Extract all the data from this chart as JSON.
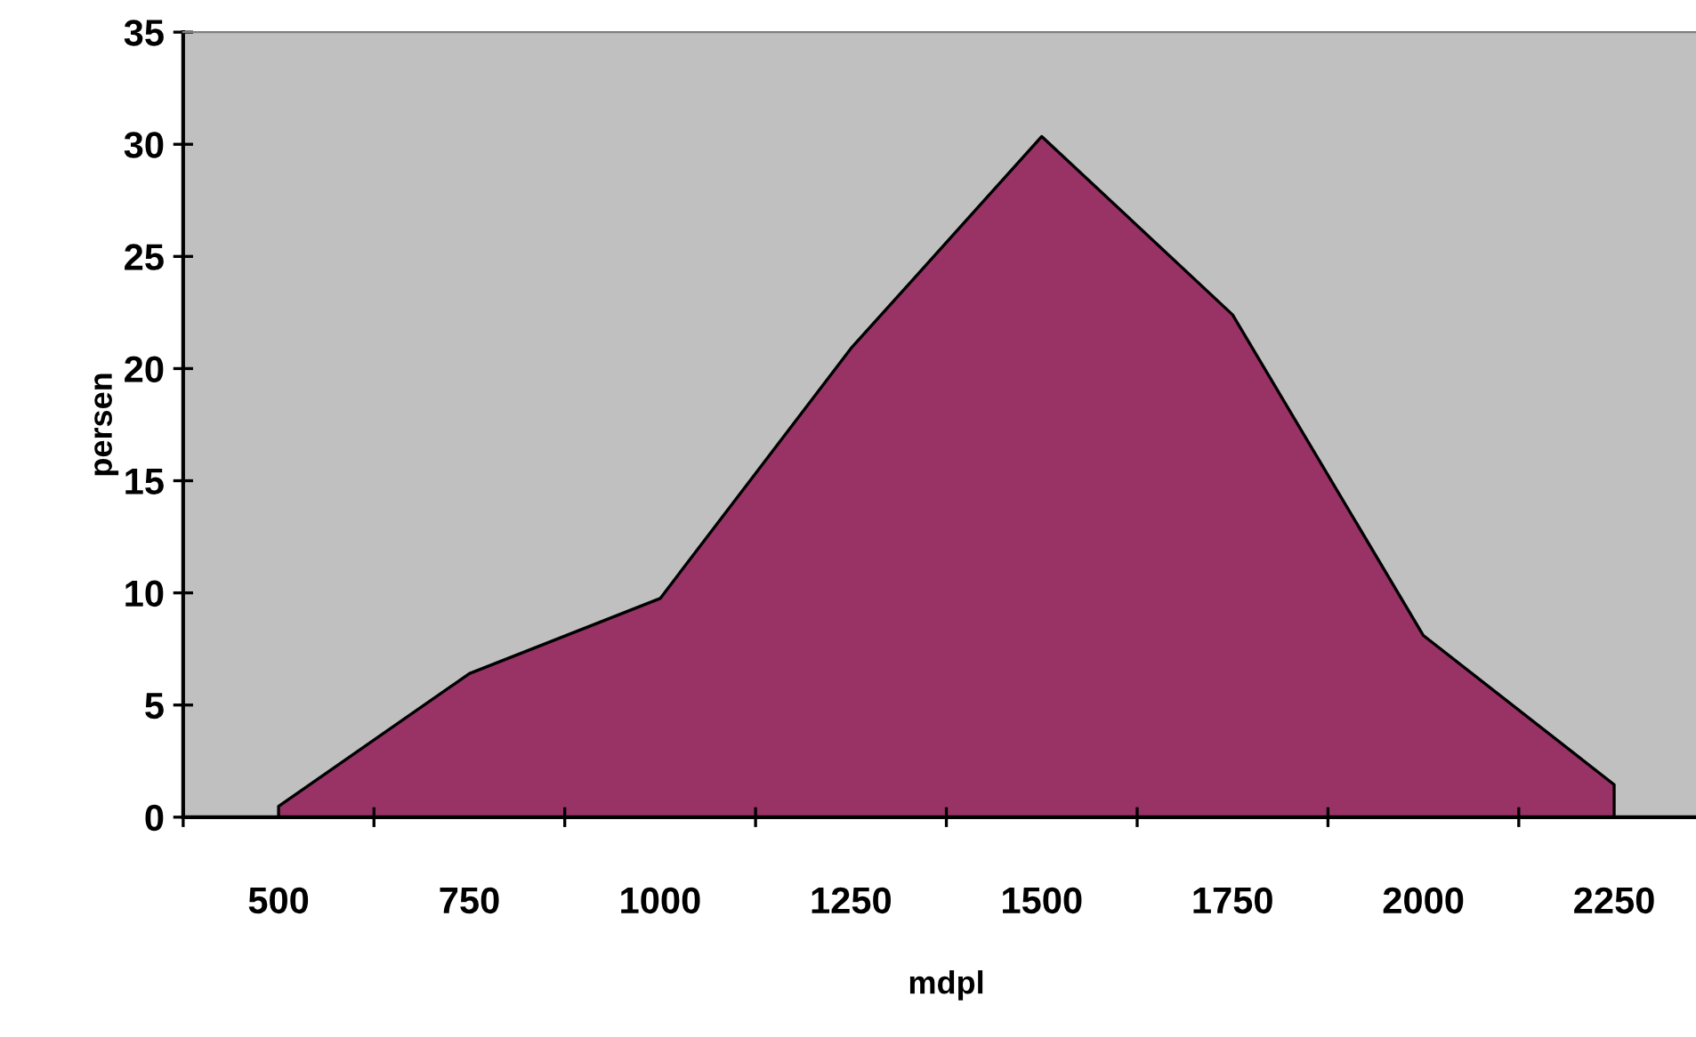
{
  "chart_data": {
    "type": "area",
    "xlabel": "mdpl",
    "ylabel": "persen",
    "categories": [
      "500",
      "750",
      "1000",
      "1250",
      "1500",
      "1750",
      "2000",
      "2250"
    ],
    "values": [
      0.48,
      6.4,
      9.75,
      20.9,
      30.35,
      22.4,
      8.1,
      1.45
    ],
    "color": "#993366",
    "ylim": [
      0,
      35
    ],
    "yticks": [
      0,
      5,
      10,
      15,
      20,
      25,
      30,
      35
    ],
    "grid": false,
    "legend": false
  }
}
